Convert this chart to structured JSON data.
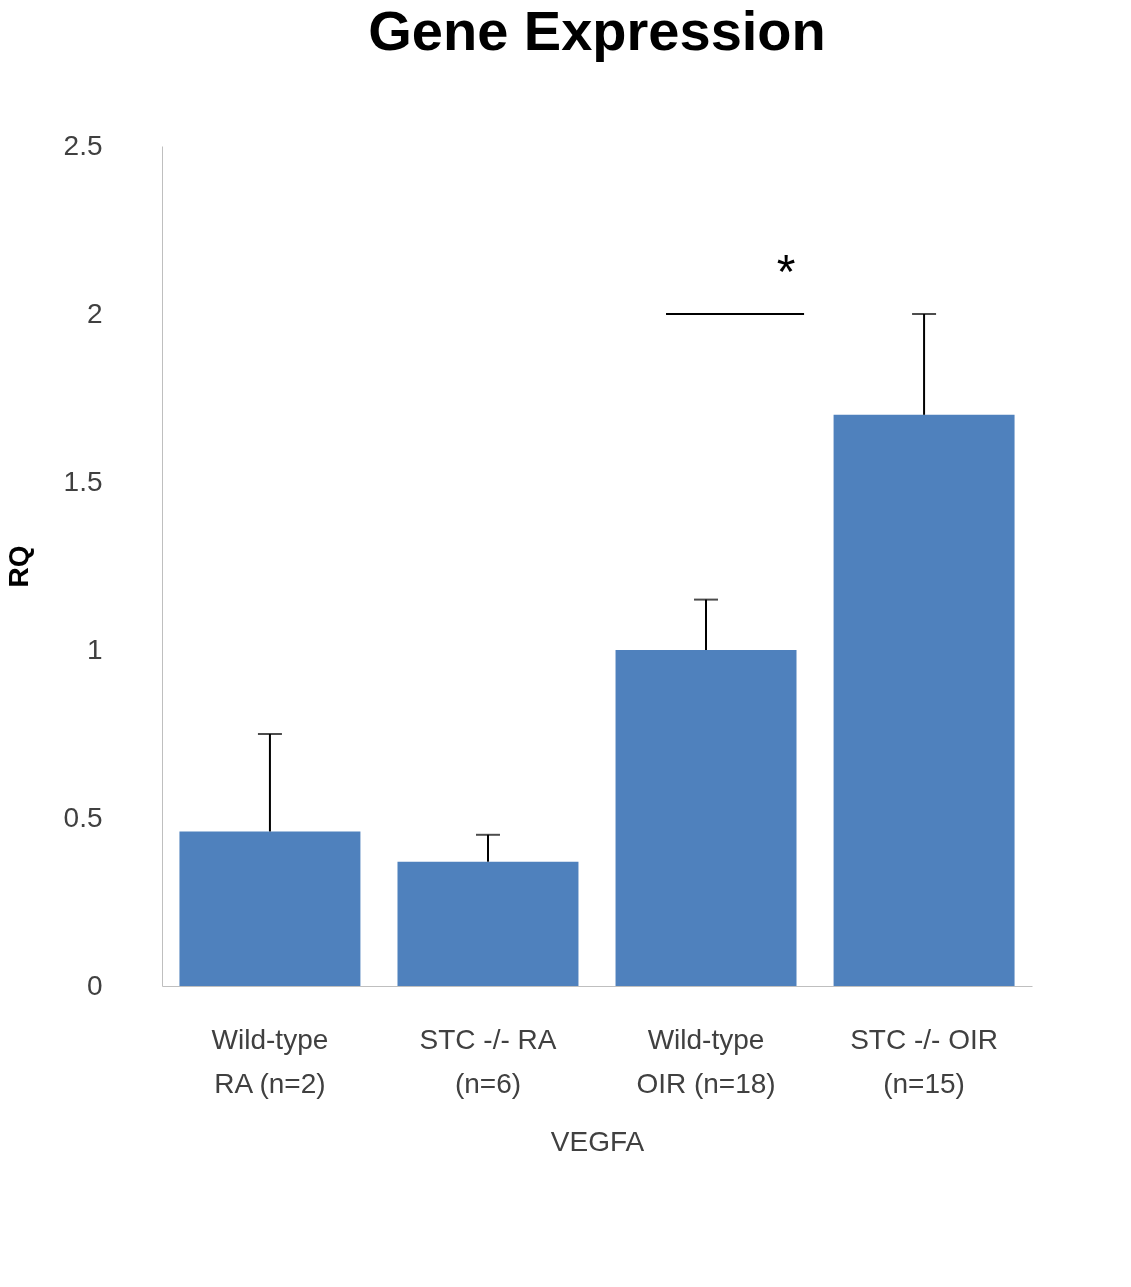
{
  "chart_data": {
    "type": "bar",
    "title": "Gene Expression",
    "ylabel": "RQ",
    "xlabel": "VEGFA",
    "categories": [
      "Wild-type\nRA (n=2)",
      "STC -/- RA\n(n=6)",
      "Wild-type\nOIR (n=18)",
      "STC -/- OIR\n(n=15)"
    ],
    "values": [
      0.46,
      0.37,
      1.0,
      1.7
    ],
    "errors": [
      [
        0.46,
        0.75
      ],
      [
        0.37,
        0.45
      ],
      [
        1.0,
        1.15
      ],
      [
        1.7,
        2.0
      ]
    ],
    "color": "#4f81bd",
    "ylim": [
      0,
      2.5
    ],
    "yticks": [
      0,
      0.5,
      1,
      1.5,
      2,
      2.5
    ],
    "grid": false,
    "annotations": [
      "*"
    ]
  }
}
